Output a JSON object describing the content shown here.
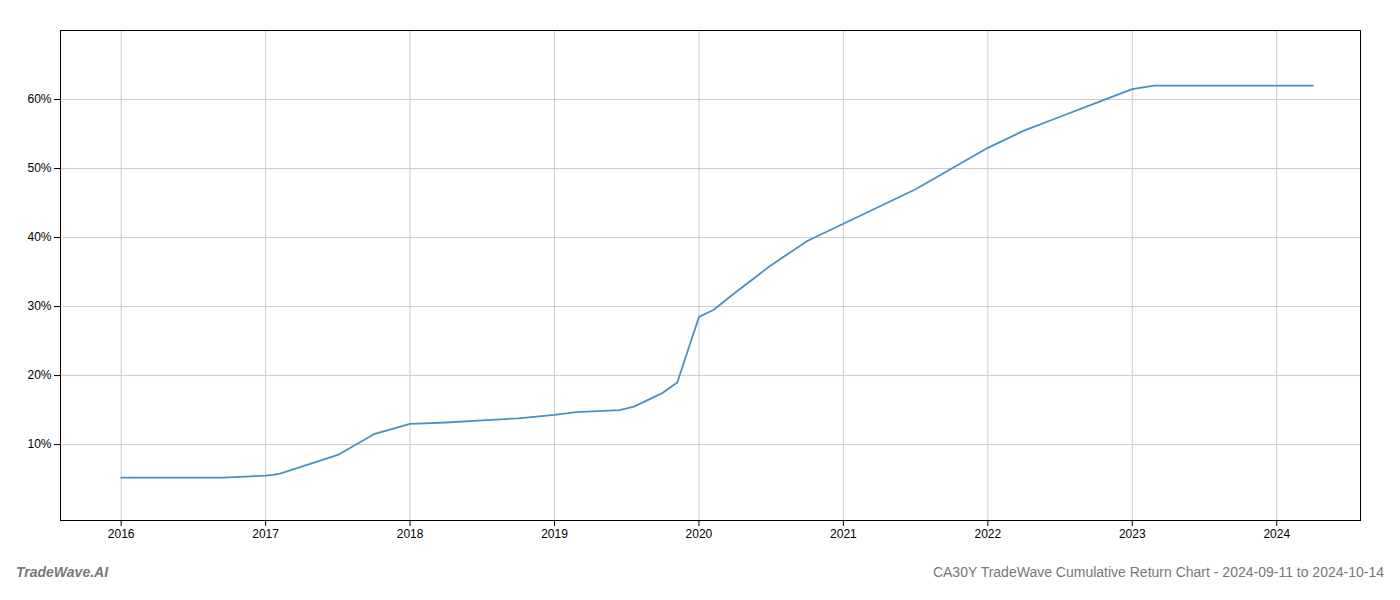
{
  "chart_data": {
    "type": "line",
    "title": "CA30Y TradeWave Cumulative Return Chart - 2024-09-11 to 2024-10-14",
    "annotations": [
      "TradeWave.AI"
    ],
    "x": [
      2016.0,
      2016.7,
      2017.0,
      2017.05,
      2017.1,
      2017.5,
      2017.75,
      2018.0,
      2018.25,
      2018.5,
      2018.75,
      2019.0,
      2019.15,
      2019.45,
      2019.55,
      2019.75,
      2019.85,
      2020.0,
      2020.1,
      2020.25,
      2020.5,
      2020.75,
      2021.0,
      2021.25,
      2021.5,
      2021.75,
      2022.0,
      2022.25,
      2022.5,
      2022.75,
      2023.0,
      2023.15,
      2023.5,
      2023.75,
      2024.0,
      2024.25
    ],
    "values": [
      5.2,
      5.2,
      5.5,
      5.6,
      5.8,
      8.5,
      11.5,
      13.0,
      13.2,
      13.5,
      13.8,
      14.3,
      14.7,
      15.0,
      15.5,
      17.5,
      19.0,
      28.5,
      29.5,
      32.0,
      36.0,
      39.5,
      42.0,
      44.5,
      47.0,
      50.0,
      53.0,
      55.5,
      57.5,
      59.5,
      61.5,
      62.0,
      62.0,
      62.0,
      62.0,
      62.0
    ],
    "color": "#4a90c4",
    "xlim": [
      2015.58,
      2024.58
    ],
    "ylim": [
      -1,
      70
    ],
    "xticks": [
      2016,
      2017,
      2018,
      2019,
      2020,
      2021,
      2022,
      2023,
      2024
    ],
    "yticks": [
      {
        "value": 10,
        "label": "10%"
      },
      {
        "value": 20,
        "label": "20%"
      },
      {
        "value": 30,
        "label": "30%"
      },
      {
        "value": 40,
        "label": "40%"
      },
      {
        "value": 50,
        "label": "50%"
      },
      {
        "value": 60,
        "label": "60%"
      }
    ],
    "grid": true
  }
}
